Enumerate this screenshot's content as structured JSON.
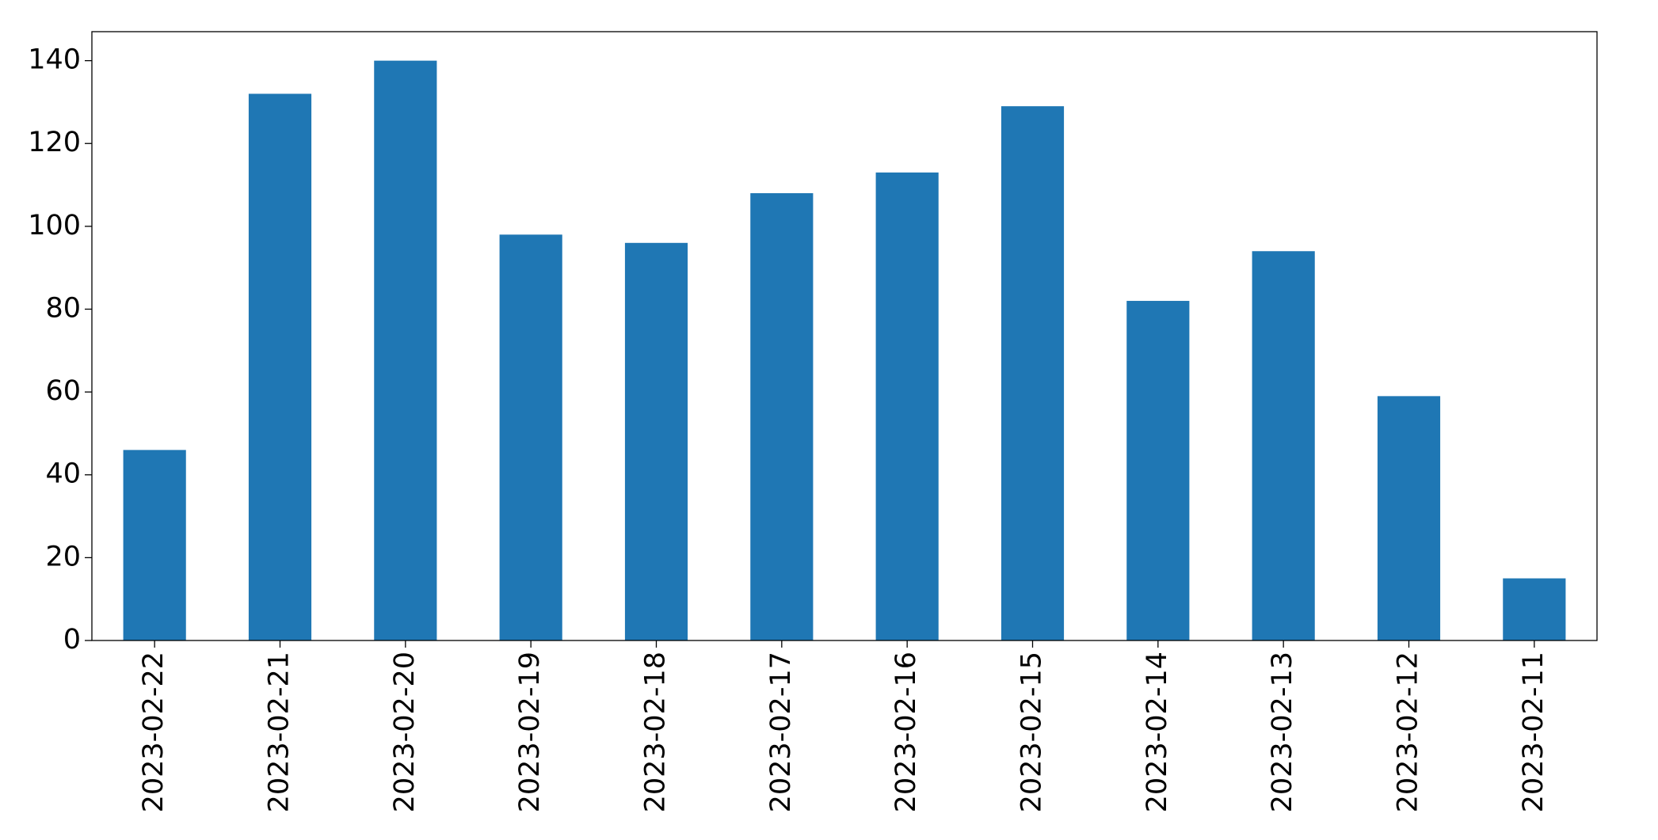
{
  "chart_data": {
    "type": "bar",
    "categories": [
      "2023-02-22",
      "2023-02-21",
      "2023-02-20",
      "2023-02-19",
      "2023-02-18",
      "2023-02-17",
      "2023-02-16",
      "2023-02-15",
      "2023-02-14",
      "2023-02-13",
      "2023-02-12",
      "2023-02-11"
    ],
    "values": [
      46,
      132,
      140,
      98,
      96,
      108,
      113,
      129,
      82,
      94,
      59,
      15
    ],
    "color": "#1f77b4",
    "ylim": [
      0,
      147
    ],
    "yticks": [
      0,
      20,
      40,
      60,
      80,
      100,
      120,
      140
    ],
    "grid": false
  }
}
